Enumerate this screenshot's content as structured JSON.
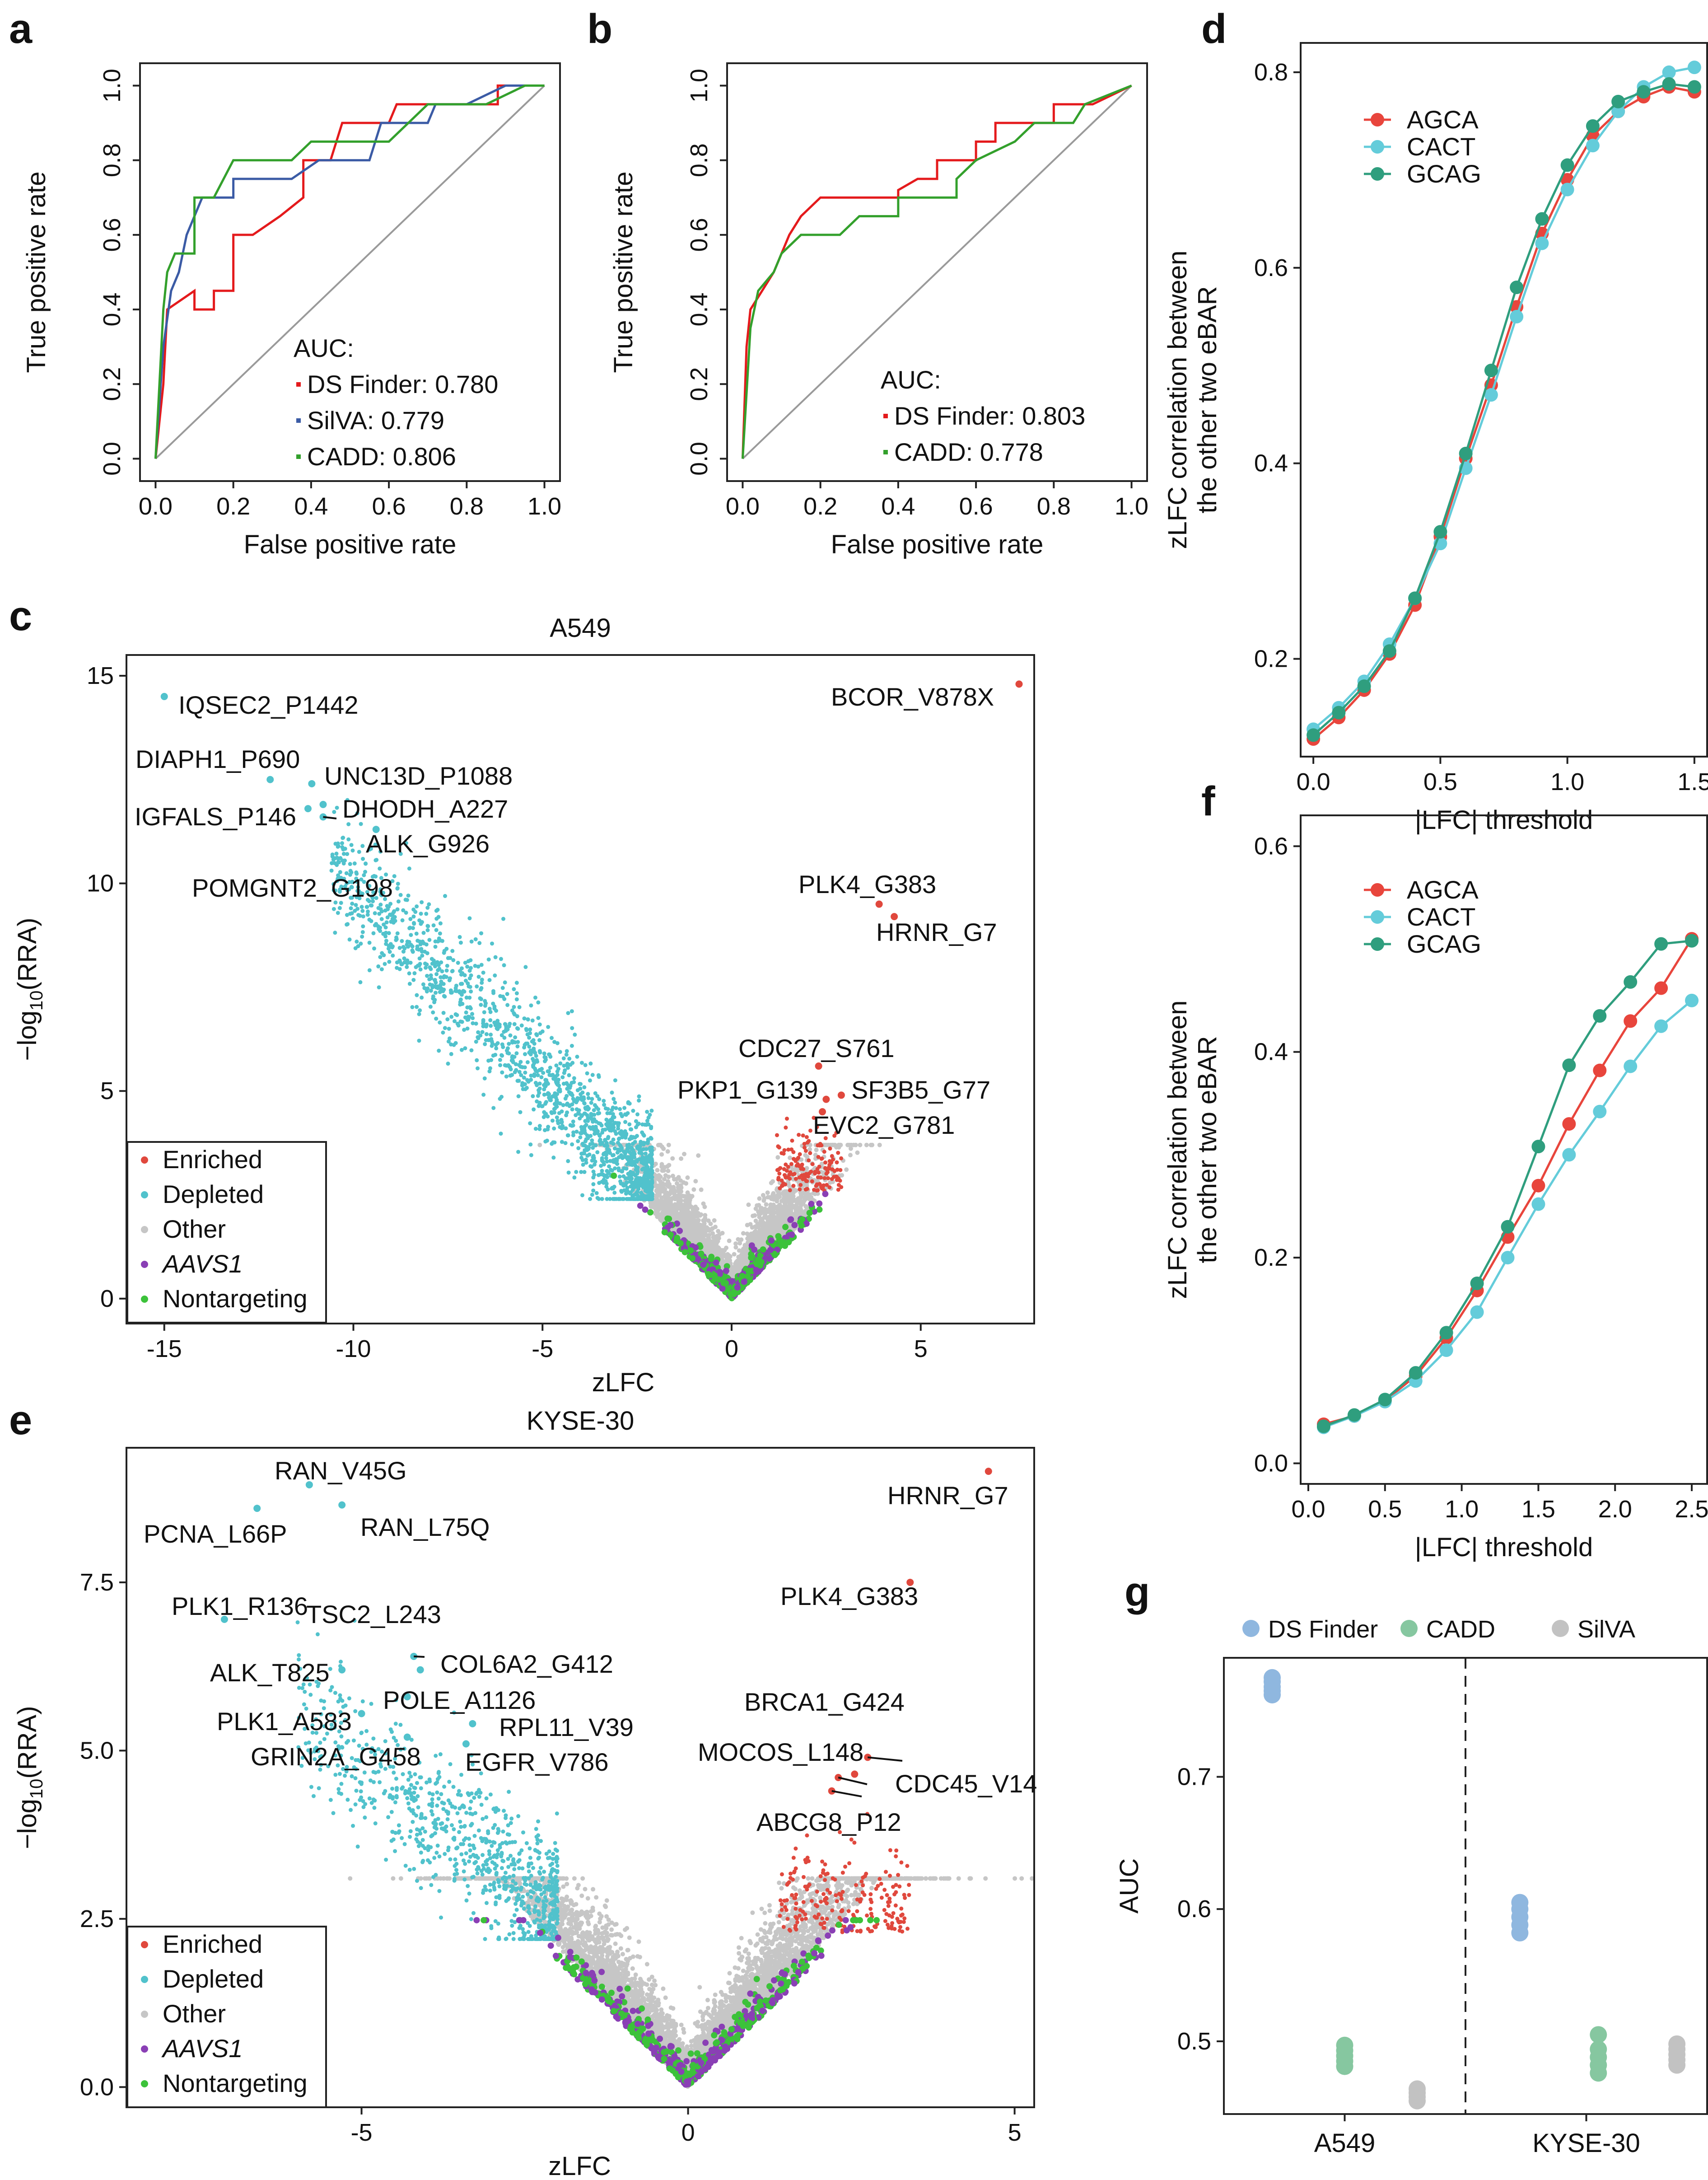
{
  "panel_letters": [
    "a",
    "b",
    "c",
    "d",
    "e",
    "f",
    "g"
  ],
  "chart_data": [
    {
      "id": "a",
      "type": "line",
      "xlabel": "False positive rate",
      "ylabel": "True positive rate",
      "xlim": [
        0,
        1
      ],
      "ylim": [
        0,
        1
      ],
      "xticks": [
        "0.0",
        "0.2",
        "0.4",
        "0.6",
        "0.8",
        "1.0"
      ],
      "yticks": [
        "0.0",
        "0.2",
        "0.4",
        "0.6",
        "0.8",
        "1.0"
      ],
      "legend_title": "AUC:",
      "series": [
        {
          "name": "DS Finder: 0.780",
          "color": "#e41a1c",
          "points": [
            [
              0,
              0
            ],
            [
              0.02,
              0.2
            ],
            [
              0.03,
              0.4
            ],
            [
              0.1,
              0.45
            ],
            [
              0.1,
              0.4
            ],
            [
              0.15,
              0.4
            ],
            [
              0.15,
              0.45
            ],
            [
              0.2,
              0.45
            ],
            [
              0.2,
              0.6
            ],
            [
              0.25,
              0.6
            ],
            [
              0.32,
              0.65
            ],
            [
              0.38,
              0.7
            ],
            [
              0.38,
              0.8
            ],
            [
              0.45,
              0.8
            ],
            [
              0.48,
              0.9
            ],
            [
              0.6,
              0.9
            ],
            [
              0.62,
              0.95
            ],
            [
              0.88,
              0.95
            ],
            [
              0.88,
              1.0
            ],
            [
              1,
              1
            ]
          ]
        },
        {
          "name": "SilVA: 0.779",
          "color": "#3b5ba5",
          "points": [
            [
              0,
              0
            ],
            [
              0.02,
              0.3
            ],
            [
              0.04,
              0.45
            ],
            [
              0.06,
              0.5
            ],
            [
              0.08,
              0.6
            ],
            [
              0.1,
              0.65
            ],
            [
              0.12,
              0.7
            ],
            [
              0.2,
              0.7
            ],
            [
              0.2,
              0.75
            ],
            [
              0.35,
              0.75
            ],
            [
              0.42,
              0.8
            ],
            [
              0.55,
              0.8
            ],
            [
              0.58,
              0.9
            ],
            [
              0.7,
              0.9
            ],
            [
              0.72,
              0.95
            ],
            [
              0.8,
              0.95
            ],
            [
              0.9,
              1.0
            ],
            [
              1,
              1
            ]
          ]
        },
        {
          "name": "CADD: 0.806",
          "color": "#33a02c",
          "points": [
            [
              0,
              0
            ],
            [
              0.02,
              0.4
            ],
            [
              0.03,
              0.5
            ],
            [
              0.05,
              0.55
            ],
            [
              0.1,
              0.55
            ],
            [
              0.1,
              0.7
            ],
            [
              0.15,
              0.7
            ],
            [
              0.2,
              0.8
            ],
            [
              0.35,
              0.8
            ],
            [
              0.4,
              0.85
            ],
            [
              0.6,
              0.85
            ],
            [
              0.65,
              0.9
            ],
            [
              0.7,
              0.95
            ],
            [
              0.85,
              0.95
            ],
            [
              0.95,
              1.0
            ],
            [
              1,
              1
            ]
          ]
        }
      ]
    },
    {
      "id": "b",
      "type": "line",
      "xlabel": "False positive rate",
      "ylabel": "True positive rate",
      "xlim": [
        0,
        1
      ],
      "ylim": [
        0,
        1
      ],
      "xticks": [
        "0.0",
        "0.2",
        "0.4",
        "0.6",
        "0.8",
        "1.0"
      ],
      "yticks": [
        "0.0",
        "0.2",
        "0.4",
        "0.6",
        "0.8",
        "1.0"
      ],
      "legend_title": "AUC:",
      "series": [
        {
          "name": "DS Finder: 0.803",
          "color": "#e41a1c",
          "points": [
            [
              0,
              0
            ],
            [
              0.01,
              0.3
            ],
            [
              0.02,
              0.4
            ],
            [
              0.05,
              0.45
            ],
            [
              0.08,
              0.5
            ],
            [
              0.1,
              0.55
            ],
            [
              0.12,
              0.6
            ],
            [
              0.15,
              0.65
            ],
            [
              0.2,
              0.7
            ],
            [
              0.4,
              0.7
            ],
            [
              0.4,
              0.72
            ],
            [
              0.45,
              0.75
            ],
            [
              0.5,
              0.75
            ],
            [
              0.5,
              0.8
            ],
            [
              0.6,
              0.8
            ],
            [
              0.6,
              0.85
            ],
            [
              0.65,
              0.85
            ],
            [
              0.65,
              0.9
            ],
            [
              0.8,
              0.9
            ],
            [
              0.8,
              0.95
            ],
            [
              0.9,
              0.95
            ],
            [
              1,
              1
            ]
          ]
        },
        {
          "name": "CADD: 0.778",
          "color": "#33a02c",
          "points": [
            [
              0,
              0
            ],
            [
              0.02,
              0.35
            ],
            [
              0.04,
              0.45
            ],
            [
              0.08,
              0.5
            ],
            [
              0.1,
              0.55
            ],
            [
              0.15,
              0.6
            ],
            [
              0.25,
              0.6
            ],
            [
              0.3,
              0.65
            ],
            [
              0.4,
              0.65
            ],
            [
              0.4,
              0.7
            ],
            [
              0.55,
              0.7
            ],
            [
              0.55,
              0.75
            ],
            [
              0.6,
              0.8
            ],
            [
              0.7,
              0.85
            ],
            [
              0.75,
              0.9
            ],
            [
              0.85,
              0.9
            ],
            [
              0.88,
              0.95
            ],
            [
              1,
              1
            ]
          ]
        }
      ]
    },
    {
      "id": "c",
      "type": "scatter",
      "title": "A549",
      "xlabel": "zLFC",
      "ylabel": "-log10(RRA)",
      "xlim": [
        -16,
        8
      ],
      "ylim": [
        -0.6,
        15.5
      ],
      "xticks": [
        "-15",
        "-10",
        "-5",
        "0",
        "5"
      ],
      "yticks": [
        "0",
        "5",
        "10",
        "15"
      ],
      "legend": [
        {
          "label": "Enriched",
          "color": "#e0483d"
        },
        {
          "label": "Depleted",
          "color": "#51c2cc"
        },
        {
          "label": "Other",
          "color": "#c6c6c6"
        },
        {
          "label": "AAVS1",
          "color": "#8a3fb5",
          "italic": true
        },
        {
          "label": "Nontargeting",
          "color": "#3cc23a"
        }
      ],
      "labeled_points": [
        {
          "label": "IQSEC2_P1442",
          "x": -15.0,
          "y": 14.5,
          "group": "Depleted"
        },
        {
          "label": "DIAPH1_P690",
          "x": -12.2,
          "y": 12.5,
          "group": "Depleted"
        },
        {
          "label": "UNC13D_P1088",
          "x": -11.1,
          "y": 12.4,
          "group": "Depleted"
        },
        {
          "label": "IGFALS_P146",
          "x": -11.2,
          "y": 11.8,
          "group": "Depleted"
        },
        {
          "label": "DHODH_A227",
          "x": -10.8,
          "y": 11.9,
          "group": "Depleted"
        },
        {
          "label": "ALK_G926",
          "x": -9.4,
          "y": 11.3,
          "group": "Depleted"
        },
        {
          "label": "POMGNT2_G198",
          "x": -10.8,
          "y": 11.6,
          "group": "Depleted"
        },
        {
          "label": "BCOR_V878X",
          "x": 7.6,
          "y": 14.8,
          "group": "Enriched"
        },
        {
          "label": "PLK4_G383",
          "x": 3.9,
          "y": 9.5,
          "group": "Enriched"
        },
        {
          "label": "HRNR_G7",
          "x": 4.3,
          "y": 9.2,
          "group": "Enriched"
        },
        {
          "label": "CDC27_S761",
          "x": 2.3,
          "y": 5.6,
          "group": "Enriched"
        },
        {
          "label": "PKP1_G139",
          "x": 2.5,
          "y": 4.8,
          "group": "Enriched"
        },
        {
          "label": "SF3B5_G77",
          "x": 2.9,
          "y": 4.9,
          "group": "Enriched"
        },
        {
          "label": "EVC2_G781",
          "x": 2.4,
          "y": 4.5,
          "group": "Enriched"
        }
      ]
    },
    {
      "id": "d",
      "type": "line",
      "xlabel": "|LFC| threshold",
      "ylabel": [
        "zLFC correlation between",
        "the other two eBAR"
      ],
      "xlim": [
        -0.05,
        1.55
      ],
      "ylim": [
        0.1,
        0.83
      ],
      "xticks": [
        "0.0",
        "0.5",
        "1.0",
        "1.5"
      ],
      "yticks": [
        "0.2",
        "0.4",
        "0.6",
        "0.8"
      ],
      "x": [
        0,
        0.1,
        0.2,
        0.3,
        0.4,
        0.5,
        0.6,
        0.7,
        0.8,
        0.9,
        1.0,
        1.1,
        1.2,
        1.3,
        1.4,
        1.5
      ],
      "series": [
        {
          "name": "AGCA",
          "color": "#e8453c",
          "values": [
            0.118,
            0.14,
            0.168,
            0.205,
            0.255,
            0.325,
            0.405,
            0.48,
            0.56,
            0.635,
            0.69,
            0.735,
            0.76,
            0.775,
            0.785,
            0.78
          ]
        },
        {
          "name": "CACT",
          "color": "#64ccda",
          "values": [
            0.128,
            0.15,
            0.177,
            0.215,
            0.262,
            0.318,
            0.395,
            0.47,
            0.55,
            0.625,
            0.68,
            0.725,
            0.76,
            0.785,
            0.8,
            0.805
          ]
        },
        {
          "name": "GCAG",
          "color": "#2f9e7e",
          "values": [
            0.122,
            0.145,
            0.172,
            0.208,
            0.262,
            0.33,
            0.41,
            0.495,
            0.58,
            0.65,
            0.705,
            0.745,
            0.77,
            0.78,
            0.788,
            0.785
          ]
        }
      ]
    },
    {
      "id": "e",
      "type": "scatter",
      "title": "KYSE-30",
      "xlabel": "zLFC",
      "ylabel": "-log10(RRA)",
      "xlim": [
        -8.6,
        5.3
      ],
      "ylim": [
        -0.3,
        9.5
      ],
      "xticks": [
        "-5",
        "0",
        "5"
      ],
      "yticks": [
        "0.0",
        "2.5",
        "5.0",
        "7.5"
      ],
      "legend": [
        {
          "label": "Enriched",
          "color": "#e0483d"
        },
        {
          "label": "Depleted",
          "color": "#51c2cc"
        },
        {
          "label": "Other",
          "color": "#c6c6c6"
        },
        {
          "label": "AAVS1",
          "color": "#8a3fb5",
          "italic": true
        },
        {
          "label": "Nontargeting",
          "color": "#3cc23a"
        }
      ],
      "labeled_points": [
        {
          "label": "RAN_V45G",
          "x": -5.8,
          "y": 8.95,
          "group": "Depleted"
        },
        {
          "label": "PCNA_L66P",
          "x": -6.6,
          "y": 8.6,
          "group": "Depleted"
        },
        {
          "label": "RAN_L75Q",
          "x": -5.3,
          "y": 8.65,
          "group": "Depleted"
        },
        {
          "label": "PLK1_R136",
          "x": -7.1,
          "y": 6.95,
          "group": "Depleted"
        },
        {
          "label": "TSC2_L243",
          "x": -4.2,
          "y": 6.4,
          "group": "Depleted"
        },
        {
          "label": "ALK_T825",
          "x": -5.3,
          "y": 6.2,
          "group": "Depleted"
        },
        {
          "label": "COL6A2_G412",
          "x": -4.1,
          "y": 6.2,
          "group": "Depleted"
        },
        {
          "label": "POLE_A1126",
          "x": -4.3,
          "y": 5.8,
          "group": "Depleted"
        },
        {
          "label": "PLK1_A583",
          "x": -5.0,
          "y": 5.55,
          "group": "Depleted"
        },
        {
          "label": "RPL11_V39",
          "x": -3.3,
          "y": 5.4,
          "group": "Depleted"
        },
        {
          "label": "GRIN2A_G458",
          "x": -4.3,
          "y": 5.2,
          "group": "Depleted"
        },
        {
          "label": "EGFR_V786",
          "x": -3.4,
          "y": 5.1,
          "group": "Depleted"
        },
        {
          "label": "HRNR_G7",
          "x": 4.6,
          "y": 9.15,
          "group": "Enriched"
        },
        {
          "label": "PLK4_G383",
          "x": 3.4,
          "y": 7.5,
          "group": "Enriched"
        },
        {
          "label": "BRCA1_G424",
          "x": 2.75,
          "y": 4.9,
          "group": "Enriched"
        },
        {
          "label": "MOCOS_L148",
          "x": 2.3,
          "y": 4.6,
          "group": "Enriched"
        },
        {
          "label": "CDC45_V14",
          "x": 2.55,
          "y": 4.65,
          "group": "Enriched"
        },
        {
          "label": "ABCG8_P12",
          "x": 2.2,
          "y": 4.4,
          "group": "Enriched"
        }
      ]
    },
    {
      "id": "f",
      "type": "line",
      "xlabel": "|LFC| threshold",
      "ylabel": [
        "zLFC correlation between",
        "the other two eBAR"
      ],
      "xlim": [
        -0.05,
        2.6
      ],
      "ylim": [
        -0.02,
        0.63
      ],
      "xticks": [
        "0.0",
        "0.5",
        "1.0",
        "1.5",
        "2.0",
        "2.5"
      ],
      "yticks": [
        "0.0",
        "0.2",
        "0.4",
        "0.6"
      ],
      "x": [
        0.1,
        0.3,
        0.5,
        0.7,
        0.9,
        1.1,
        1.3,
        1.5,
        1.7,
        1.9,
        2.1,
        2.3,
        2.5
      ],
      "series": [
        {
          "name": "AGCA",
          "color": "#e8453c",
          "values": [
            0.038,
            0.046,
            0.061,
            0.085,
            0.122,
            0.168,
            0.22,
            0.27,
            0.33,
            0.382,
            0.43,
            0.462,
            0.51
          ]
        },
        {
          "name": "CACT",
          "color": "#64ccda",
          "values": [
            0.035,
            0.046,
            0.06,
            0.08,
            0.11,
            0.147,
            0.2,
            0.252,
            0.3,
            0.342,
            0.386,
            0.425,
            0.45
          ]
        },
        {
          "name": "GCAG",
          "color": "#2f9e7e",
          "values": [
            0.036,
            0.047,
            0.062,
            0.088,
            0.127,
            0.175,
            0.23,
            0.308,
            0.387,
            0.435,
            0.468,
            0.505,
            0.508
          ]
        }
      ]
    },
    {
      "id": "g",
      "type": "scatter",
      "xlabel": "",
      "ylabel": "AUC",
      "categories": [
        "A549",
        "KYSE-30"
      ],
      "ylim": [
        0.445,
        0.79
      ],
      "yticks": [
        "0.5",
        "0.6",
        "0.7"
      ],
      "legend": [
        {
          "label": "DS Finder",
          "color": "#8fb7df"
        },
        {
          "label": "CADD",
          "color": "#86c7a0"
        },
        {
          "label": "SilVA",
          "color": "#c2c2c2"
        }
      ],
      "series": [
        {
          "name": "DS Finder",
          "color": "#8fb7df",
          "A549": [
            0.762,
            0.765,
            0.768,
            0.772,
            0.775
          ],
          "KYSE-30": [
            0.582,
            0.588,
            0.594,
            0.6,
            0.605
          ]
        },
        {
          "name": "CADD",
          "color": "#86c7a0",
          "A549": [
            0.481,
            0.485,
            0.489,
            0.493,
            0.497
          ],
          "KYSE-30": [
            0.476,
            0.482,
            0.488,
            0.494,
            0.505
          ]
        },
        {
          "name": "SilVA",
          "color": "#c2c2c2",
          "A549": [
            0.455,
            0.458,
            0.461,
            0.464
          ],
          "KYSE-30": [
            0.482,
            0.486,
            0.49,
            0.494,
            0.498
          ]
        }
      ]
    }
  ]
}
